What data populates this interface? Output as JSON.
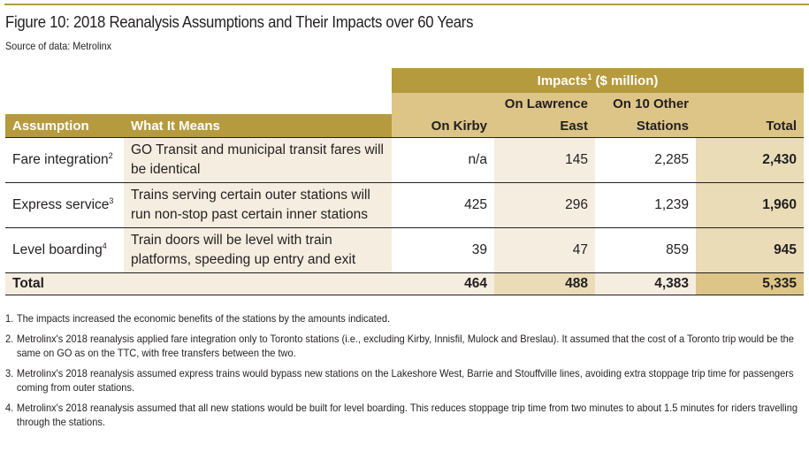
{
  "figure": {
    "title": "Figure 10: 2018 Reanalysis Assumptions and Their Impacts over 60 Years",
    "source": "Source of data: Metrolinx"
  },
  "table": {
    "group_header": "Impacts",
    "group_header_sup": "1",
    "group_header_unit": " ($ million)",
    "columns": {
      "assumption": "Assumption",
      "what_it_means": "What It Means",
      "kirby": "On Kirby",
      "lawrence_line1": "On Lawrence",
      "lawrence_line2": "East",
      "other_line1": "On 10 Other",
      "other_line2": "Stations",
      "total": "Total"
    },
    "rows": [
      {
        "assumption": "Fare integration",
        "sup": "2",
        "means": "GO Transit and municipal transit fares will be identical",
        "kirby": "n/a",
        "lawrence": "145",
        "other": "2,285",
        "total": "2,430"
      },
      {
        "assumption": "Express service",
        "sup": "3",
        "means": "Trains serving certain outer stations will run non-stop past certain inner stations",
        "kirby": "425",
        "lawrence": "296",
        "other": "1,239",
        "total": "1,960"
      },
      {
        "assumption": "Level boarding",
        "sup": "4",
        "means": "Train doors will be level with train platforms, speeding up entry and exit",
        "kirby": "39",
        "lawrence": "47",
        "other": "859",
        "total": "945"
      }
    ],
    "total_row": {
      "label": "Total",
      "kirby": "464",
      "lawrence": "488",
      "other": "4,383",
      "total": "5,335"
    }
  },
  "notes": [
    {
      "num": "1.",
      "text": "The impacts increased the economic benefits of the stations by the amounts indicated."
    },
    {
      "num": "2.",
      "text": "Metrolinx's 2018 reanalysis applied fare integration only to Toronto stations (i.e., excluding Kirby, Innisfil, Mulock and Breslau). It assumed that the cost of a Toronto trip would be the same on GO as on the TTC, with free transfers between the two."
    },
    {
      "num": "3.",
      "text": "Metrolinx's 2018 reanalysis assumed express trains would bypass new stations on the Lakeshore West, Barrie and Stouffville lines, avoiding extra stoppage trip time for passengers coming from outer stations."
    },
    {
      "num": "4.",
      "text": "Metrolinx's 2018 reanalysis assumed that all new stations would be built for level boarding. This reduces stoppage trip time from two minutes to about 1.5 minutes for riders travelling through the stations."
    }
  ]
}
